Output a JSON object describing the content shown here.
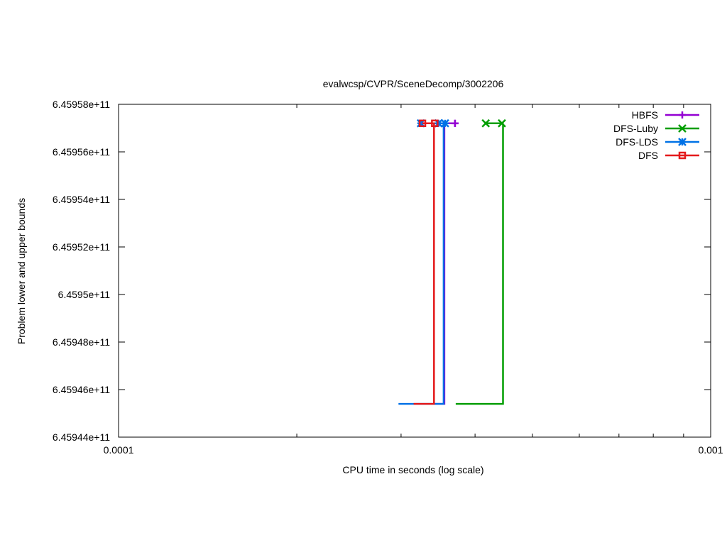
{
  "chart_data": {
    "type": "line",
    "title": "evalwcsp/CVPR/SceneDecomp/3002206",
    "xlabel": "CPU time in seconds (log scale)",
    "ylabel": "Problem lower and upper bounds",
    "x_scale": "log",
    "xlim": [
      0.0001,
      0.001
    ],
    "ylim": [
      645944000000,
      645958000000
    ],
    "x_ticks": [
      {
        "value": 0.0001,
        "label": "0.0001"
      },
      {
        "value": 0.001,
        "label": "0.001"
      }
    ],
    "y_ticks": [
      {
        "value": 645944000000,
        "label": "6.45944e+11"
      },
      {
        "value": 645946000000,
        "label": "6.45946e+11"
      },
      {
        "value": 645948000000,
        "label": "6.45948e+11"
      },
      {
        "value": 645950000000,
        "label": "6.4595e+11"
      },
      {
        "value": 645952000000,
        "label": "6.45952e+11"
      },
      {
        "value": 645954000000,
        "label": "6.45954e+11"
      },
      {
        "value": 645956000000,
        "label": "6.45956e+11"
      },
      {
        "value": 645958000000,
        "label": "6.45958e+11"
      }
    ],
    "grid": false,
    "legend_position": "top-right",
    "series": [
      {
        "name": "HBFS",
        "color": "#9400d3",
        "marker": "plus",
        "lower": [
          [
            0.000341,
            645945400000
          ],
          [
            0.000355,
            645945400000
          ],
          [
            0.000355,
            645957200000
          ]
        ],
        "upper": [
          [
            0.000326,
            645957200000
          ],
          [
            0.000346,
            645957200000
          ],
          [
            0.00037,
            645957200000
          ],
          [
            0.00037,
            645957200000
          ]
        ]
      },
      {
        "name": "DFS-Luby",
        "color": "#009e00",
        "marker": "cross",
        "lower": [
          [
            0.000371,
            645945400000
          ],
          [
            0.000446,
            645945400000
          ],
          [
            0.000446,
            645957200000
          ]
        ],
        "upper": [
          [
            0.000417,
            645957200000
          ],
          [
            0.000444,
            645957200000
          ]
        ]
      },
      {
        "name": "DFS-LDS",
        "color": "#0072e6",
        "marker": "star",
        "lower": [
          [
            0.000297,
            645945400000
          ],
          [
            0.000354,
            645945400000
          ],
          [
            0.000354,
            645957200000
          ]
        ],
        "upper": [
          [
            0.000324,
            645957200000
          ],
          [
            0.000347,
            645957200000
          ],
          [
            0.000356,
            645957200000
          ]
        ]
      },
      {
        "name": "DFS",
        "color": "#e41a1c",
        "marker": "square",
        "lower": [
          [
            0.000315,
            645945400000
          ],
          [
            0.000341,
            645945400000
          ],
          [
            0.000341,
            645957200000
          ]
        ],
        "upper": [
          [
            0.000326,
            645957200000
          ],
          [
            0.000342,
            645957200000
          ]
        ]
      }
    ]
  }
}
